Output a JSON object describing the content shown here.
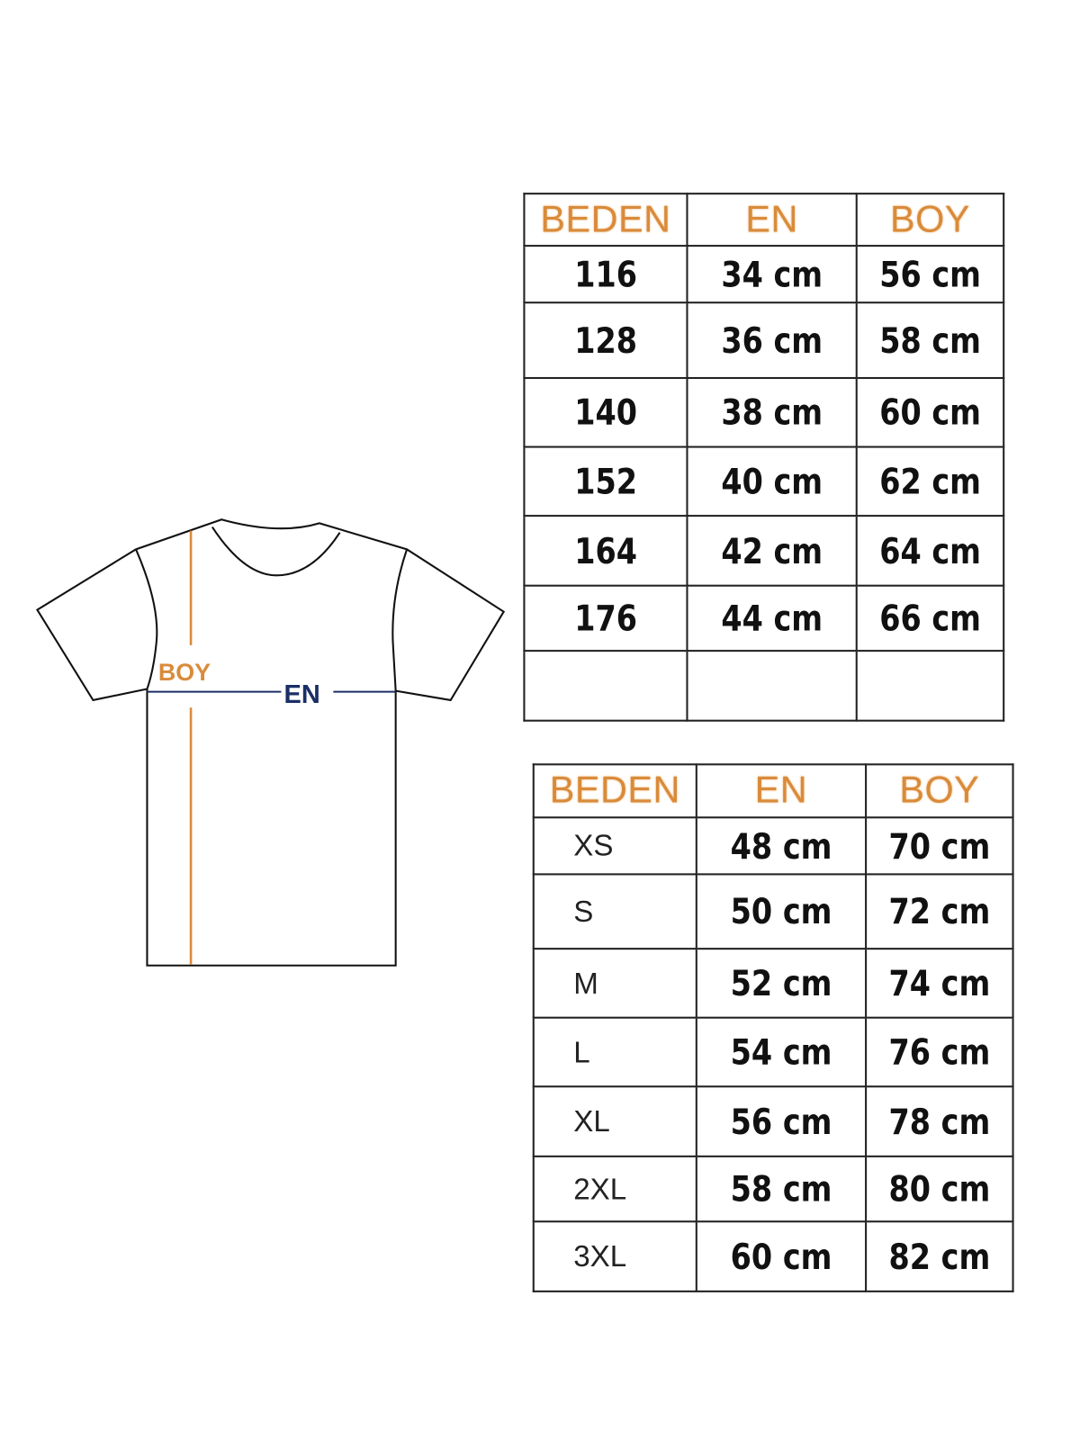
{
  "colors": {
    "header": "#d98b3a",
    "boy_line": "#d98b3a",
    "en_line": "#1b2f66",
    "outline": "#111111"
  },
  "diagram": {
    "boy_label": "BOY",
    "en_label": "EN"
  },
  "kids_table": {
    "headers": [
      "BEDEN",
      "EN",
      "BOY"
    ],
    "rows": [
      [
        "116",
        "34 cm",
        "56 cm"
      ],
      [
        "128",
        "36 cm",
        "58 cm"
      ],
      [
        "140",
        "38 cm",
        "60 cm"
      ],
      [
        "152",
        "40 cm",
        "62 cm"
      ],
      [
        "164",
        "42 cm",
        "64 cm"
      ],
      [
        "176",
        "44 cm",
        "66 cm"
      ],
      [
        "",
        "",
        ""
      ]
    ]
  },
  "adult_table": {
    "headers": [
      "BEDEN",
      "EN",
      "BOY"
    ],
    "rows": [
      [
        "XS",
        "48 cm",
        "70 cm"
      ],
      [
        "S",
        "50 cm",
        "72 cm"
      ],
      [
        "M",
        "52 cm",
        "74 cm"
      ],
      [
        "L",
        "54 cm",
        "76 cm"
      ],
      [
        "XL",
        "56 cm",
        "78 cm"
      ],
      [
        "2XL",
        "58 cm",
        "80 cm"
      ],
      [
        "3XL",
        "60 cm",
        "82 cm"
      ]
    ]
  }
}
